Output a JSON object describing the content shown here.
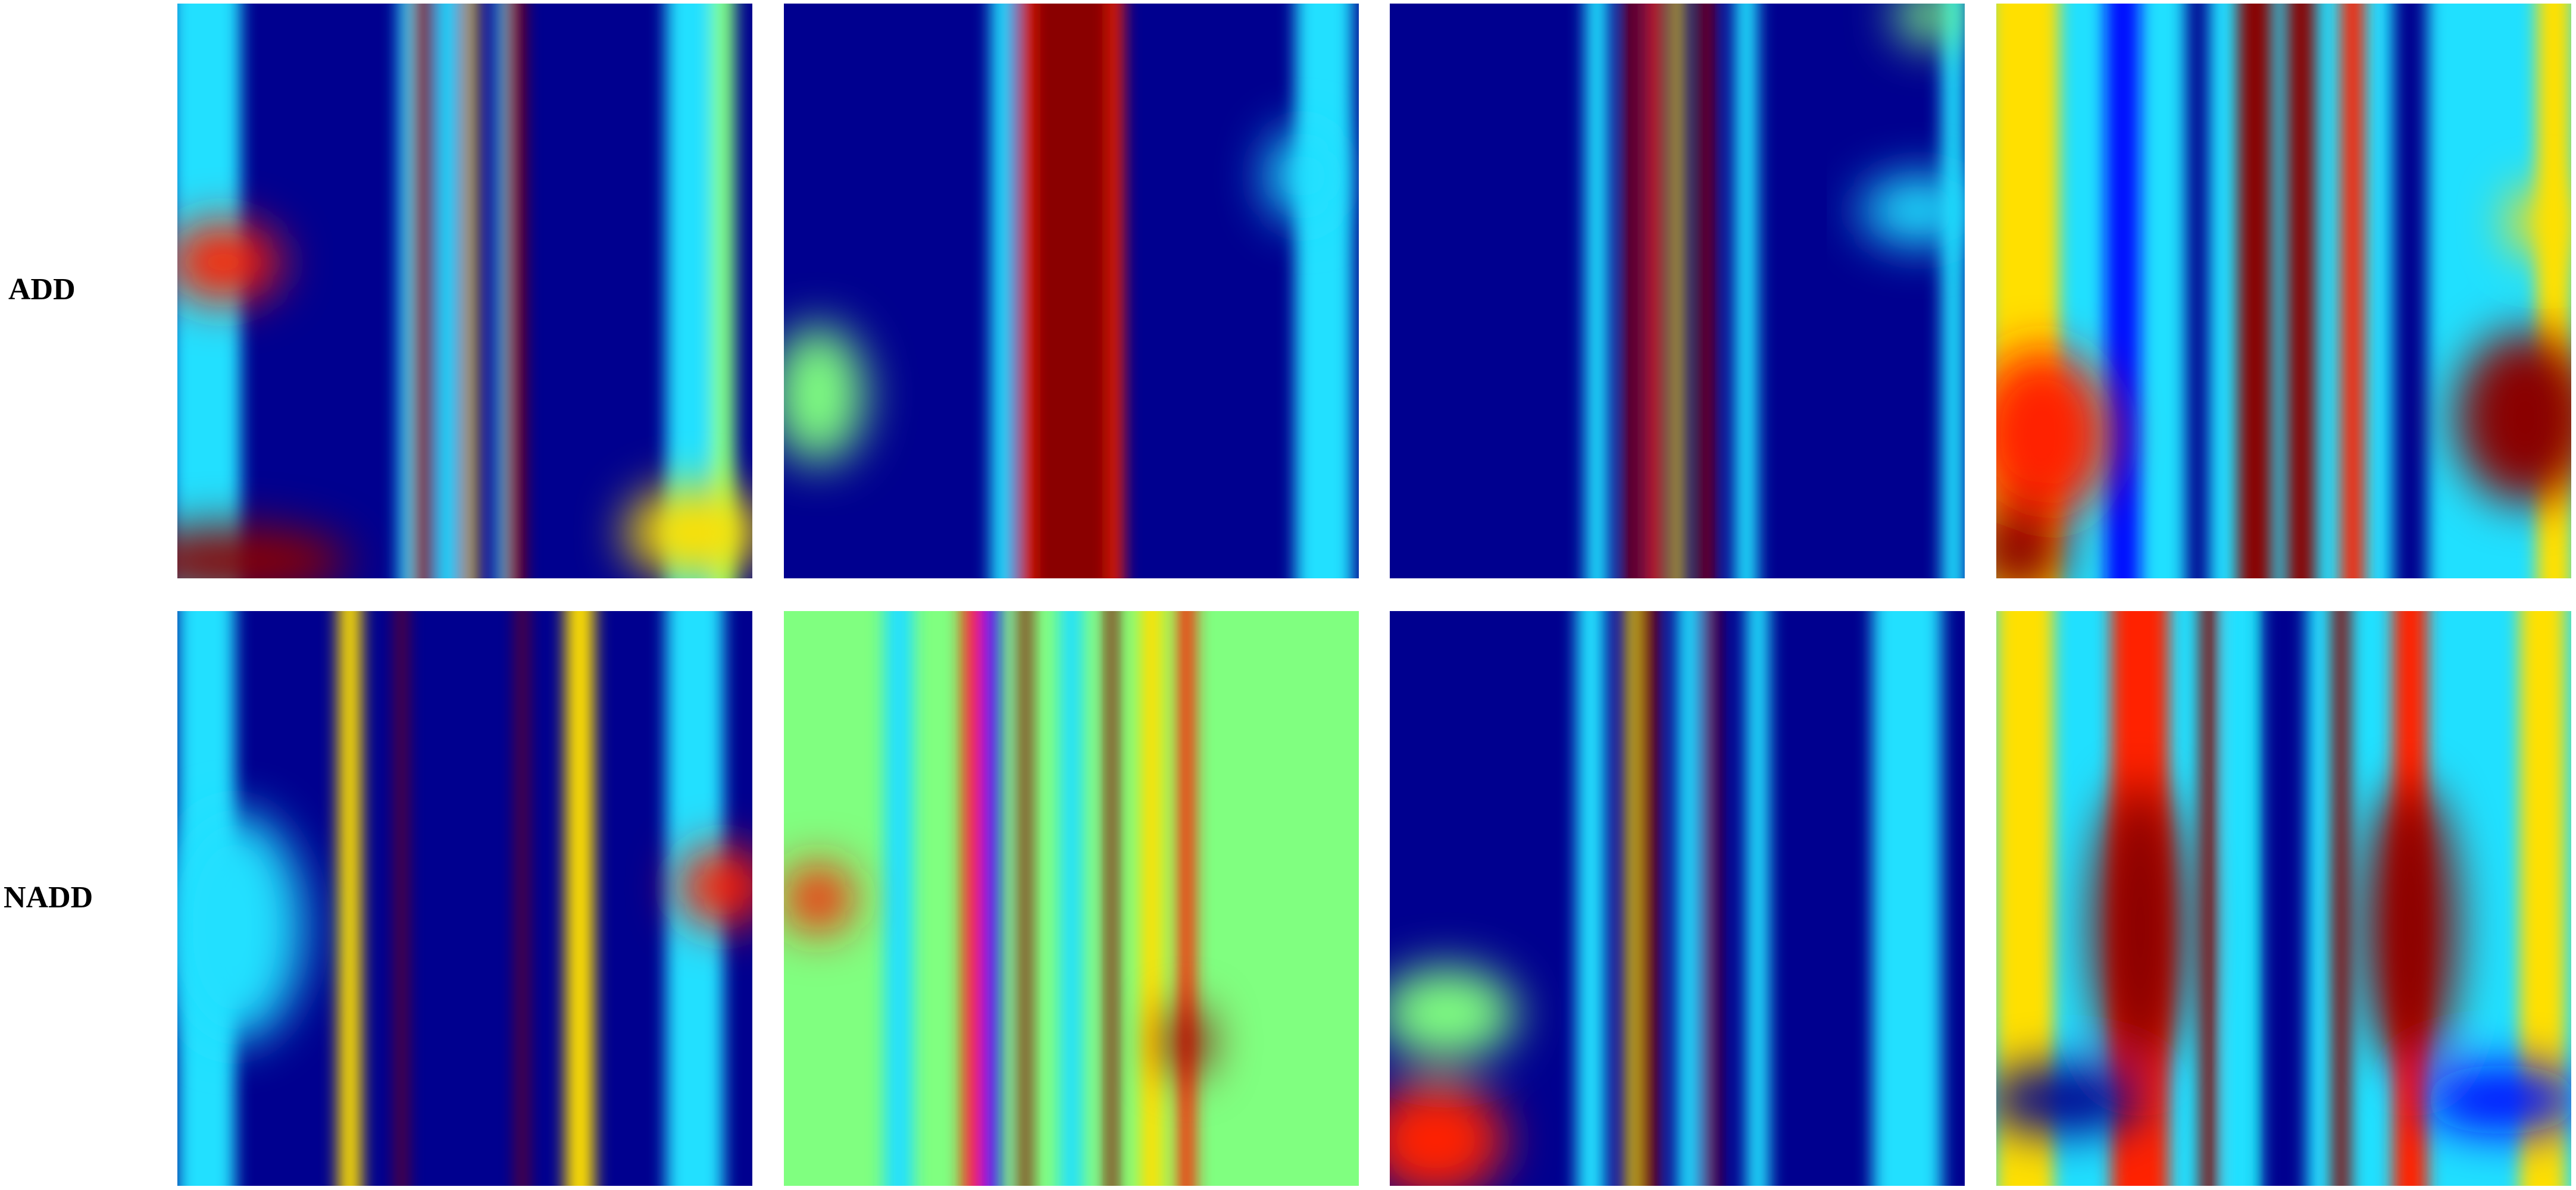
{
  "rows": [
    {
      "label": "ADD"
    },
    {
      "label": "NADD"
    }
  ]
}
